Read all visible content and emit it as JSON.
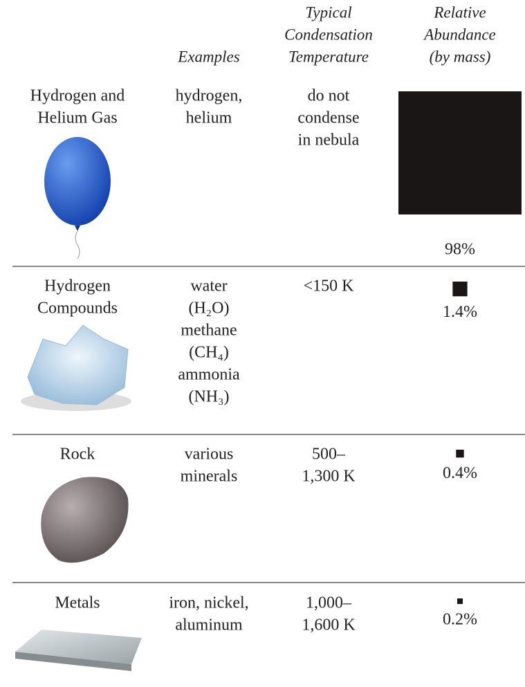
{
  "header": {
    "examples": "Examples",
    "temperature": [
      "Typical",
      "Condensation",
      "Temperature"
    ],
    "abundance": [
      "Relative",
      "Abundance",
      "(by mass)"
    ]
  },
  "rows": [
    {
      "name": [
        "Hydrogen and",
        "Helium Gas"
      ],
      "examples": [
        "hydrogen,",
        "helium"
      ],
      "temperature": [
        "do not",
        "condense",
        "in nebula"
      ],
      "abundance": 98,
      "abundance_label": "98%"
    },
    {
      "name": [
        "Hydrogen",
        "Compounds"
      ],
      "examples": [
        "water",
        "(H₂O)",
        "methane",
        "(CH₄)",
        "ammonia",
        "(NH₃)"
      ],
      "temperature": [
        "<150 K"
      ],
      "abundance": 1.4,
      "abundance_label": "1.4%"
    },
    {
      "name": [
        "Rock"
      ],
      "examples": [
        "various",
        "minerals"
      ],
      "temperature": [
        "500–",
        "1,300 K"
      ],
      "abundance": 0.4,
      "abundance_label": "0.4%"
    },
    {
      "name": [
        "Metals"
      ],
      "examples": [
        "iron, nickel,",
        "aluminum"
      ],
      "temperature": [
        "1,000–",
        "1,600 K"
      ],
      "abundance": 0.2,
      "abundance_label": "0.2%"
    }
  ]
}
